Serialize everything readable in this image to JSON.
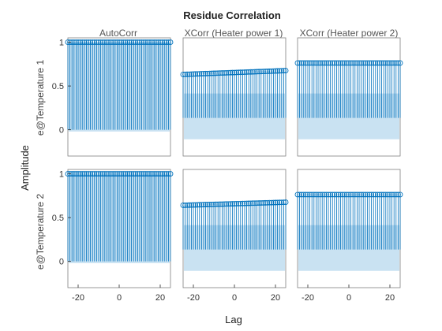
{
  "chart_data": {
    "type": "stem",
    "title": "Residue Correlation",
    "xlabel": "Lag",
    "ylabel": "Amplitude",
    "columns": [
      "AutoCorr",
      "XCorr (Heater power 1)",
      "XCorr (Heater power 2)"
    ],
    "rows": [
      "e@Temperature 1",
      "e@Temperature 2"
    ],
    "x_ticks": [
      "-20",
      "0",
      "20"
    ],
    "y_ticks": [
      "0",
      "0.5",
      "1"
    ],
    "xlim": [
      -25,
      25
    ],
    "lags": {
      "start": -25,
      "end": 25,
      "step": 1
    },
    "colors": {
      "stem": "#0072BD",
      "band": "#C9E2F2",
      "axes": "#262626",
      "box": "#808080"
    },
    "panels": [
      {
        "row": "e@Temperature 1",
        "column": "AutoCorr",
        "ylim": [
          -0.3,
          1.05
        ],
        "series": "constant",
        "value": 1.0,
        "band": [
          -0.02,
          1.0
        ]
      },
      {
        "row": "e@Temperature 1",
        "column": "XCorr (Heater power 1)",
        "ylim": [
          -0.5,
          1.05
        ],
        "series": "linear",
        "value_at_start": 0.57,
        "value_at_end": 0.62,
        "band": [
          -0.28,
          0.32
        ]
      },
      {
        "row": "e@Temperature 1",
        "column": "XCorr (Heater power 2)",
        "ylim": [
          -0.5,
          1.05
        ],
        "series": "constant",
        "value": 0.72,
        "band": [
          -0.28,
          0.32
        ]
      },
      {
        "row": "e@Temperature 2",
        "column": "AutoCorr",
        "ylim": [
          -0.3,
          1.05
        ],
        "series": "constant",
        "value": 1.0,
        "band": [
          -0.02,
          1.0
        ]
      },
      {
        "row": "e@Temperature 2",
        "column": "XCorr (Heater power 1)",
        "ylim": [
          -0.5,
          1.05
        ],
        "series": "linear",
        "value_at_start": 0.58,
        "value_at_end": 0.62,
        "band": [
          -0.28,
          0.32
        ]
      },
      {
        "row": "e@Temperature 2",
        "column": "XCorr (Heater power 2)",
        "ylim": [
          -0.5,
          1.05
        ],
        "series": "constant",
        "value": 0.72,
        "band": [
          -0.28,
          0.32
        ]
      }
    ]
  }
}
